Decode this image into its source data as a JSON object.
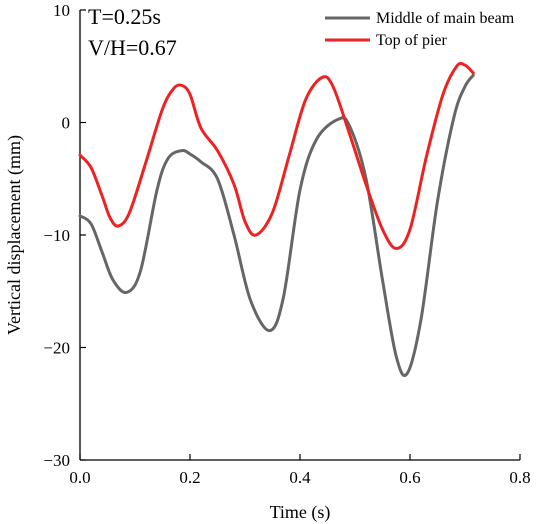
{
  "chart_data": {
    "type": "line",
    "title": "",
    "xlabel": "Time (s)",
    "ylabel": "Vertical displacement (mm)",
    "xlim": [
      0.0,
      0.8
    ],
    "ylim": [
      -30,
      10
    ],
    "xticks": [
      "0.0",
      "0.2",
      "0.4",
      "0.6",
      "0.8"
    ],
    "yticks": [
      "10",
      "0",
      "−10",
      "−20",
      "−30"
    ],
    "annotations": [
      "T=0.25s",
      "V/H=0.67"
    ],
    "legend_position": "top-right",
    "grid": false,
    "series": [
      {
        "name": "Middle of main beam",
        "color": "#666666",
        "x": [
          0.0,
          0.02,
          0.04,
          0.06,
          0.085,
          0.11,
          0.14,
          0.16,
          0.185,
          0.2,
          0.22,
          0.25,
          0.28,
          0.31,
          0.345,
          0.37,
          0.4,
          0.43,
          0.47,
          0.49,
          0.52,
          0.55,
          0.575,
          0.595,
          0.62,
          0.65,
          0.68,
          0.7,
          0.715
        ],
        "y": [
          -8.3,
          -9.0,
          -11.5,
          -14.0,
          -15.1,
          -13.2,
          -6.0,
          -3.2,
          -2.5,
          -2.8,
          -3.5,
          -5.0,
          -10.0,
          -15.8,
          -18.5,
          -15.5,
          -6.0,
          -1.5,
          0.3,
          -0.3,
          -5.0,
          -14.0,
          -20.8,
          -22.3,
          -17.5,
          -7.0,
          0.5,
          3.2,
          4.2
        ]
      },
      {
        "name": "Top of pier",
        "color": "#ee2222",
        "x": [
          0.0,
          0.02,
          0.04,
          0.055,
          0.07,
          0.09,
          0.12,
          0.15,
          0.17,
          0.185,
          0.2,
          0.22,
          0.25,
          0.28,
          0.3,
          0.32,
          0.35,
          0.38,
          0.41,
          0.44,
          0.46,
          0.49,
          0.52,
          0.55,
          0.575,
          0.6,
          0.63,
          0.66,
          0.685,
          0.7,
          0.715
        ],
        "y": [
          -2.9,
          -4.0,
          -6.5,
          -8.5,
          -9.2,
          -8.0,
          -3.5,
          1.2,
          3.0,
          3.3,
          2.5,
          -0.5,
          -2.5,
          -5.5,
          -8.8,
          -10.0,
          -8.0,
          -3.0,
          2.0,
          4.0,
          3.2,
          -1.0,
          -5.5,
          -9.5,
          -11.2,
          -9.5,
          -3.0,
          2.5,
          5.0,
          5.1,
          4.4
        ]
      }
    ]
  }
}
